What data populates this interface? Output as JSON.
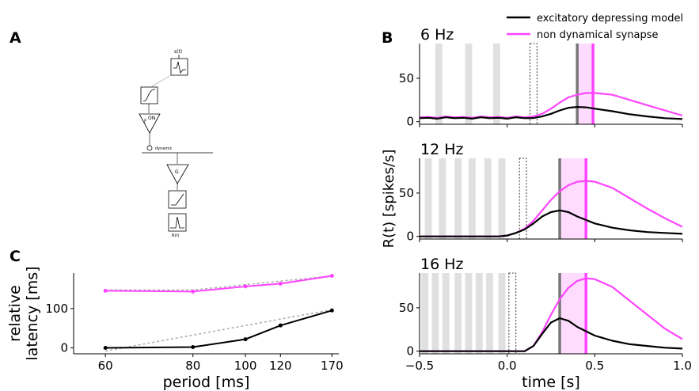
{
  "panel_labels": {
    "a": "A",
    "b": "B",
    "c": "C"
  },
  "legend": [
    {
      "label": "excitatory depressing model",
      "color": "#000000"
    },
    {
      "label": "non dynamical synapse",
      "color": "#ff44ff"
    }
  ],
  "diagram": {
    "input_label": "s(t)",
    "filter_label": "F",
    "on_label": "ON",
    "dynamic_label": "dynamic",
    "gain_label": "G",
    "output_label": "R(t)"
  },
  "colors": {
    "depressing": "#000000",
    "non_dynamical": "#ff44ff",
    "stimulus": "#e0e0e0",
    "latency_band": "#ffdcff",
    "fit": "#aaaaaa"
  },
  "chart_data": [
    {
      "type": "line",
      "panel": "B",
      "title": "6 Hz",
      "xlabel": "",
      "ylabel": "",
      "xlim": [
        -0.5,
        1.0
      ],
      "ylim": [
        -3,
        90
      ],
      "yticks": [
        0,
        50
      ],
      "xticks": [
        -0.5,
        0.0,
        0.5,
        1.0
      ],
      "stimulus_pulses": [
        [
          -0.41,
          -0.37
        ],
        [
          -0.24,
          -0.2
        ],
        [
          -0.08,
          -0.04
        ]
      ],
      "omitted_pulse": [
        0.13,
        0.17
      ],
      "latency_band": [
        0.4,
        0.49
      ],
      "peak_markers": {
        "depressing": 0.4,
        "non_dynamical": 0.49
      },
      "series": [
        {
          "name": "excitatory depressing model",
          "color": "#000000",
          "x": [
            -0.5,
            -0.45,
            -0.4,
            -0.35,
            -0.3,
            -0.25,
            -0.2,
            -0.15,
            -0.1,
            -0.05,
            0.0,
            0.05,
            0.1,
            0.15,
            0.2,
            0.25,
            0.3,
            0.35,
            0.4,
            0.45,
            0.5,
            0.6,
            0.7,
            0.8,
            0.9,
            1.0
          ],
          "y": [
            4,
            4.5,
            3.5,
            5,
            4,
            4.5,
            3.5,
            5,
            4,
            4.5,
            3.5,
            5,
            4,
            4.2,
            6,
            9,
            13,
            16,
            17,
            16.5,
            15,
            12,
            8.5,
            6,
            4,
            3
          ]
        },
        {
          "name": "non dynamical synapse",
          "color": "#ff44ff",
          "x": [
            -0.5,
            -0.45,
            -0.4,
            -0.35,
            -0.3,
            -0.25,
            -0.2,
            -0.15,
            -0.1,
            -0.05,
            0.0,
            0.05,
            0.1,
            0.15,
            0.2,
            0.25,
            0.3,
            0.35,
            0.4,
            0.45,
            0.5,
            0.6,
            0.7,
            0.8,
            0.9,
            1.0
          ],
          "y": [
            5,
            5.5,
            4.5,
            6,
            5,
            5.5,
            4.5,
            6,
            5,
            5.5,
            4.5,
            6,
            5,
            6,
            9,
            15,
            22,
            28,
            31,
            33,
            33,
            31,
            25,
            19,
            13,
            7
          ]
        }
      ]
    },
    {
      "type": "line",
      "panel": "B",
      "title": "12 Hz",
      "xlabel": "",
      "ylabel": "R(t) [spikes/s]",
      "xlim": [
        -0.5,
        1.0
      ],
      "ylim": [
        -3,
        90
      ],
      "yticks": [
        0,
        50
      ],
      "xticks": [
        -0.5,
        0.0,
        0.5,
        1.0
      ],
      "stimulus_pulses": [
        [
          -0.47,
          -0.43
        ],
        [
          -0.39,
          -0.35
        ],
        [
          -0.3,
          -0.26
        ],
        [
          -0.22,
          -0.18
        ],
        [
          -0.13,
          -0.09
        ],
        [
          -0.05,
          -0.01
        ]
      ],
      "omitted_pulse": [
        0.07,
        0.11
      ],
      "latency_band": [
        0.3,
        0.45
      ],
      "peak_markers": {
        "depressing": 0.3,
        "non_dynamical": 0.45
      },
      "series": [
        {
          "name": "excitatory depressing model",
          "color": "#000000",
          "x": [
            -0.5,
            -0.4,
            -0.3,
            -0.2,
            -0.1,
            -0.05,
            0.0,
            0.05,
            0.1,
            0.15,
            0.2,
            0.25,
            0.3,
            0.35,
            0.4,
            0.5,
            0.6,
            0.7,
            0.8,
            0.9,
            1.0
          ],
          "y": [
            0,
            0,
            0,
            0,
            0,
            0,
            1,
            4,
            8,
            15,
            23,
            28,
            30,
            28,
            23,
            15,
            10,
            7,
            5,
            4,
            3
          ]
        },
        {
          "name": "non dynamical synapse",
          "color": "#ff44ff",
          "x": [
            -0.5,
            -0.4,
            -0.3,
            -0.2,
            -0.1,
            -0.05,
            0.0,
            0.05,
            0.1,
            0.15,
            0.2,
            0.25,
            0.3,
            0.35,
            0.4,
            0.45,
            0.5,
            0.6,
            0.7,
            0.8,
            0.9,
            1.0
          ],
          "y": [
            0,
            0,
            0,
            0,
            0,
            0,
            1,
            4,
            9,
            18,
            30,
            42,
            52,
            59,
            63,
            64,
            63,
            56,
            44,
            32,
            21,
            11
          ]
        }
      ]
    },
    {
      "type": "line",
      "panel": "B",
      "title": "16 Hz",
      "xlabel": "time [s]",
      "ylabel": "",
      "xlim": [
        -0.5,
        1.0
      ],
      "ylim": [
        -3,
        90
      ],
      "yticks": [
        0,
        50
      ],
      "xticks": [
        -0.5,
        0.0,
        0.5,
        1.0
      ],
      "xticklabels": [
        "−0.5",
        "0.0",
        "0.5",
        "1.0"
      ],
      "stimulus_pulses": [
        [
          -0.49,
          -0.45
        ],
        [
          -0.43,
          -0.39
        ],
        [
          -0.37,
          -0.33
        ],
        [
          -0.3,
          -0.26
        ],
        [
          -0.24,
          -0.2
        ],
        [
          -0.18,
          -0.14
        ],
        [
          -0.12,
          -0.08
        ],
        [
          -0.05,
          -0.01
        ]
      ],
      "omitted_pulse": [
        0.01,
        0.05
      ],
      "latency_band": [
        0.3,
        0.45
      ],
      "peak_markers": {
        "depressing": 0.3,
        "non_dynamical": 0.45
      },
      "series": [
        {
          "name": "excitatory depressing model",
          "color": "#000000",
          "x": [
            -0.5,
            -0.3,
            -0.1,
            0.0,
            0.1,
            0.15,
            0.2,
            0.25,
            0.3,
            0.35,
            0.4,
            0.5,
            0.6,
            0.7,
            0.8,
            0.9,
            1.0
          ],
          "y": [
            0,
            0,
            0,
            0,
            0,
            6,
            20,
            33,
            38,
            35,
            28,
            18,
            12,
            8,
            6,
            4,
            3
          ]
        },
        {
          "name": "non dynamical synapse",
          "color": "#ff44ff",
          "x": [
            -0.5,
            -0.3,
            -0.1,
            0.0,
            0.1,
            0.15,
            0.2,
            0.25,
            0.3,
            0.35,
            0.4,
            0.45,
            0.5,
            0.6,
            0.7,
            0.8,
            0.9,
            1.0
          ],
          "y": [
            0,
            0,
            0,
            0,
            0,
            6,
            22,
            42,
            60,
            73,
            81,
            84,
            83,
            74,
            58,
            42,
            26,
            14
          ]
        }
      ]
    },
    {
      "type": "line",
      "panel": "C",
      "title": "",
      "xlabel": "period [ms]",
      "ylabel": "relative latency [ms]",
      "x_scale": "reciprocal",
      "xticks": [
        60,
        80,
        100,
        120,
        170
      ],
      "yticks": [
        0,
        100
      ],
      "ylim": [
        -15,
        190
      ],
      "series": [
        {
          "name": "excitatory depressing model",
          "color": "#000000",
          "x": [
            60,
            80,
            100,
            120,
            170
          ],
          "y": [
            0,
            2,
            22,
            57,
            95
          ]
        },
        {
          "name": "non dynamical synapse",
          "color": "#ff44ff",
          "x": [
            60,
            80,
            100,
            120,
            170
          ],
          "y": [
            145,
            143,
            156,
            163,
            183
          ]
        }
      ],
      "fits": [
        {
          "color": "#aaaaaa",
          "x": [
            60,
            170
          ],
          "y": [
            -8,
            97
          ]
        },
        {
          "color": "#aaaaaa",
          "x": [
            60,
            80,
            170
          ],
          "y": [
            147,
            147,
            183
          ]
        }
      ]
    }
  ]
}
